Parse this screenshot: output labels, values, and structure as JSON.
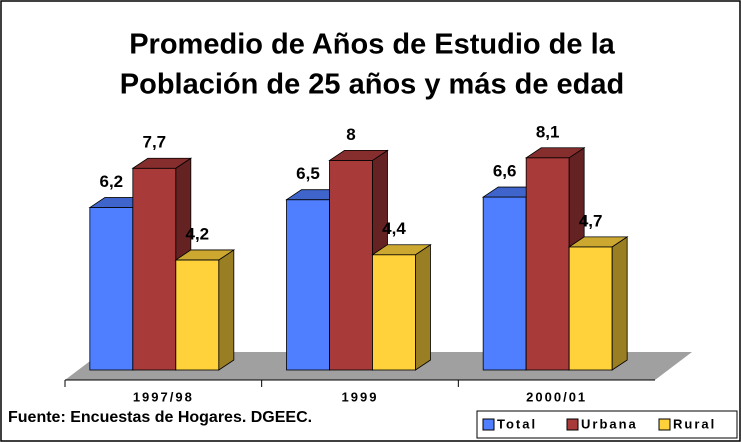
{
  "chart_data": {
    "type": "bar3d",
    "title": [
      "Promedio de Años de Estudio de la",
      "Población de 25 años y más de edad"
    ],
    "categories": [
      "1997/98",
      "1999",
      "2000/01"
    ],
    "series": [
      {
        "name": "Total",
        "color": "#4f7fff",
        "values": [
          6.2,
          6.5,
          6.6
        ],
        "value_labels": [
          "6,2",
          "6,5",
          "6,6"
        ]
      },
      {
        "name": "Urbana",
        "color": "#a83a3a",
        "values": [
          7.7,
          8,
          8.1
        ],
        "value_labels": [
          "7,7",
          "8",
          "8,1"
        ]
      },
      {
        "name": "Rural",
        "color": "#ffd23c",
        "values": [
          4.2,
          4.4,
          4.7
        ],
        "value_labels": [
          "4,2",
          "4,4",
          "4,7"
        ]
      }
    ],
    "source": "Fuente: Encuestas de Hogares. DGEEC."
  }
}
